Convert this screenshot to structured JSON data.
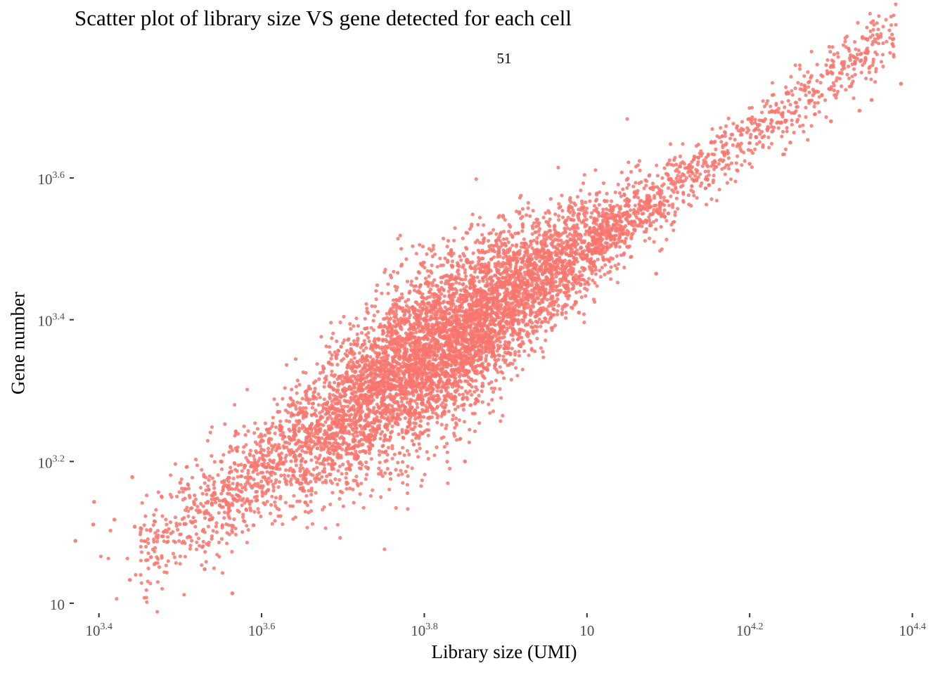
{
  "chart_data": {
    "type": "scatter",
    "title": "Scatter plot of library size VS gene detected for each cell",
    "subtitle": "51",
    "xlabel": "Library size (UMI)",
    "ylabel": "Gene number",
    "x_scale": "log10",
    "y_scale": "log10",
    "xlim_log10": [
      3.37,
      4.39
    ],
    "ylim_log10": [
      2.99,
      3.74
    ],
    "x_ticks": [
      {
        "exp": "3.4",
        "value": 3.4
      },
      {
        "exp": "3.6",
        "value": 3.6
      },
      {
        "exp": "3.8",
        "value": 3.8
      },
      {
        "exp": "",
        "value": 4.0
      },
      {
        "exp": "4.2",
        "value": 4.2
      },
      {
        "exp": "4.4",
        "value": 4.4
      }
    ],
    "y_ticks": [
      {
        "exp": "",
        "value": 3.0
      },
      {
        "exp": "3.2",
        "value": 3.2
      },
      {
        "exp": "3.4",
        "value": 3.4
      },
      {
        "exp": "3.6",
        "value": 3.6
      }
    ],
    "tick_base": "10",
    "grid": false,
    "point_color": "#F8766D",
    "series": [
      {
        "x_log10": [
          3.371,
          3.394,
          3.393,
          3.419,
          3.438,
          3.441,
          3.444,
          3.452,
          3.464,
          3.53,
          3.564,
          3.562,
          3.59,
          3.62,
          3.73,
          3.85,
          3.99,
          4.085,
          4.192,
          4.335,
          4.386,
          3.5,
          3.55,
          3.6,
          3.65,
          3.7,
          3.75,
          3.8,
          3.85,
          3.9,
          3.95,
          4.0,
          4.05,
          4.1,
          4.15,
          4.2,
          4.25,
          4.3,
          4.35
        ],
        "y_log10": [
          3.088,
          3.143,
          3.111,
          3.118,
          3.033,
          3.178,
          3.108,
          3.105,
          3.065,
          3.048,
          3.014,
          3.22,
          3.11,
          3.27,
          3.29,
          3.2,
          3.41,
          3.465,
          3.668,
          3.695,
          3.733,
          3.17,
          3.2,
          3.23,
          3.27,
          3.3,
          3.33,
          3.36,
          3.39,
          3.43,
          3.46,
          3.49,
          3.52,
          3.55,
          3.59,
          3.62,
          3.65,
          3.68,
          3.71
        ]
      }
    ]
  }
}
